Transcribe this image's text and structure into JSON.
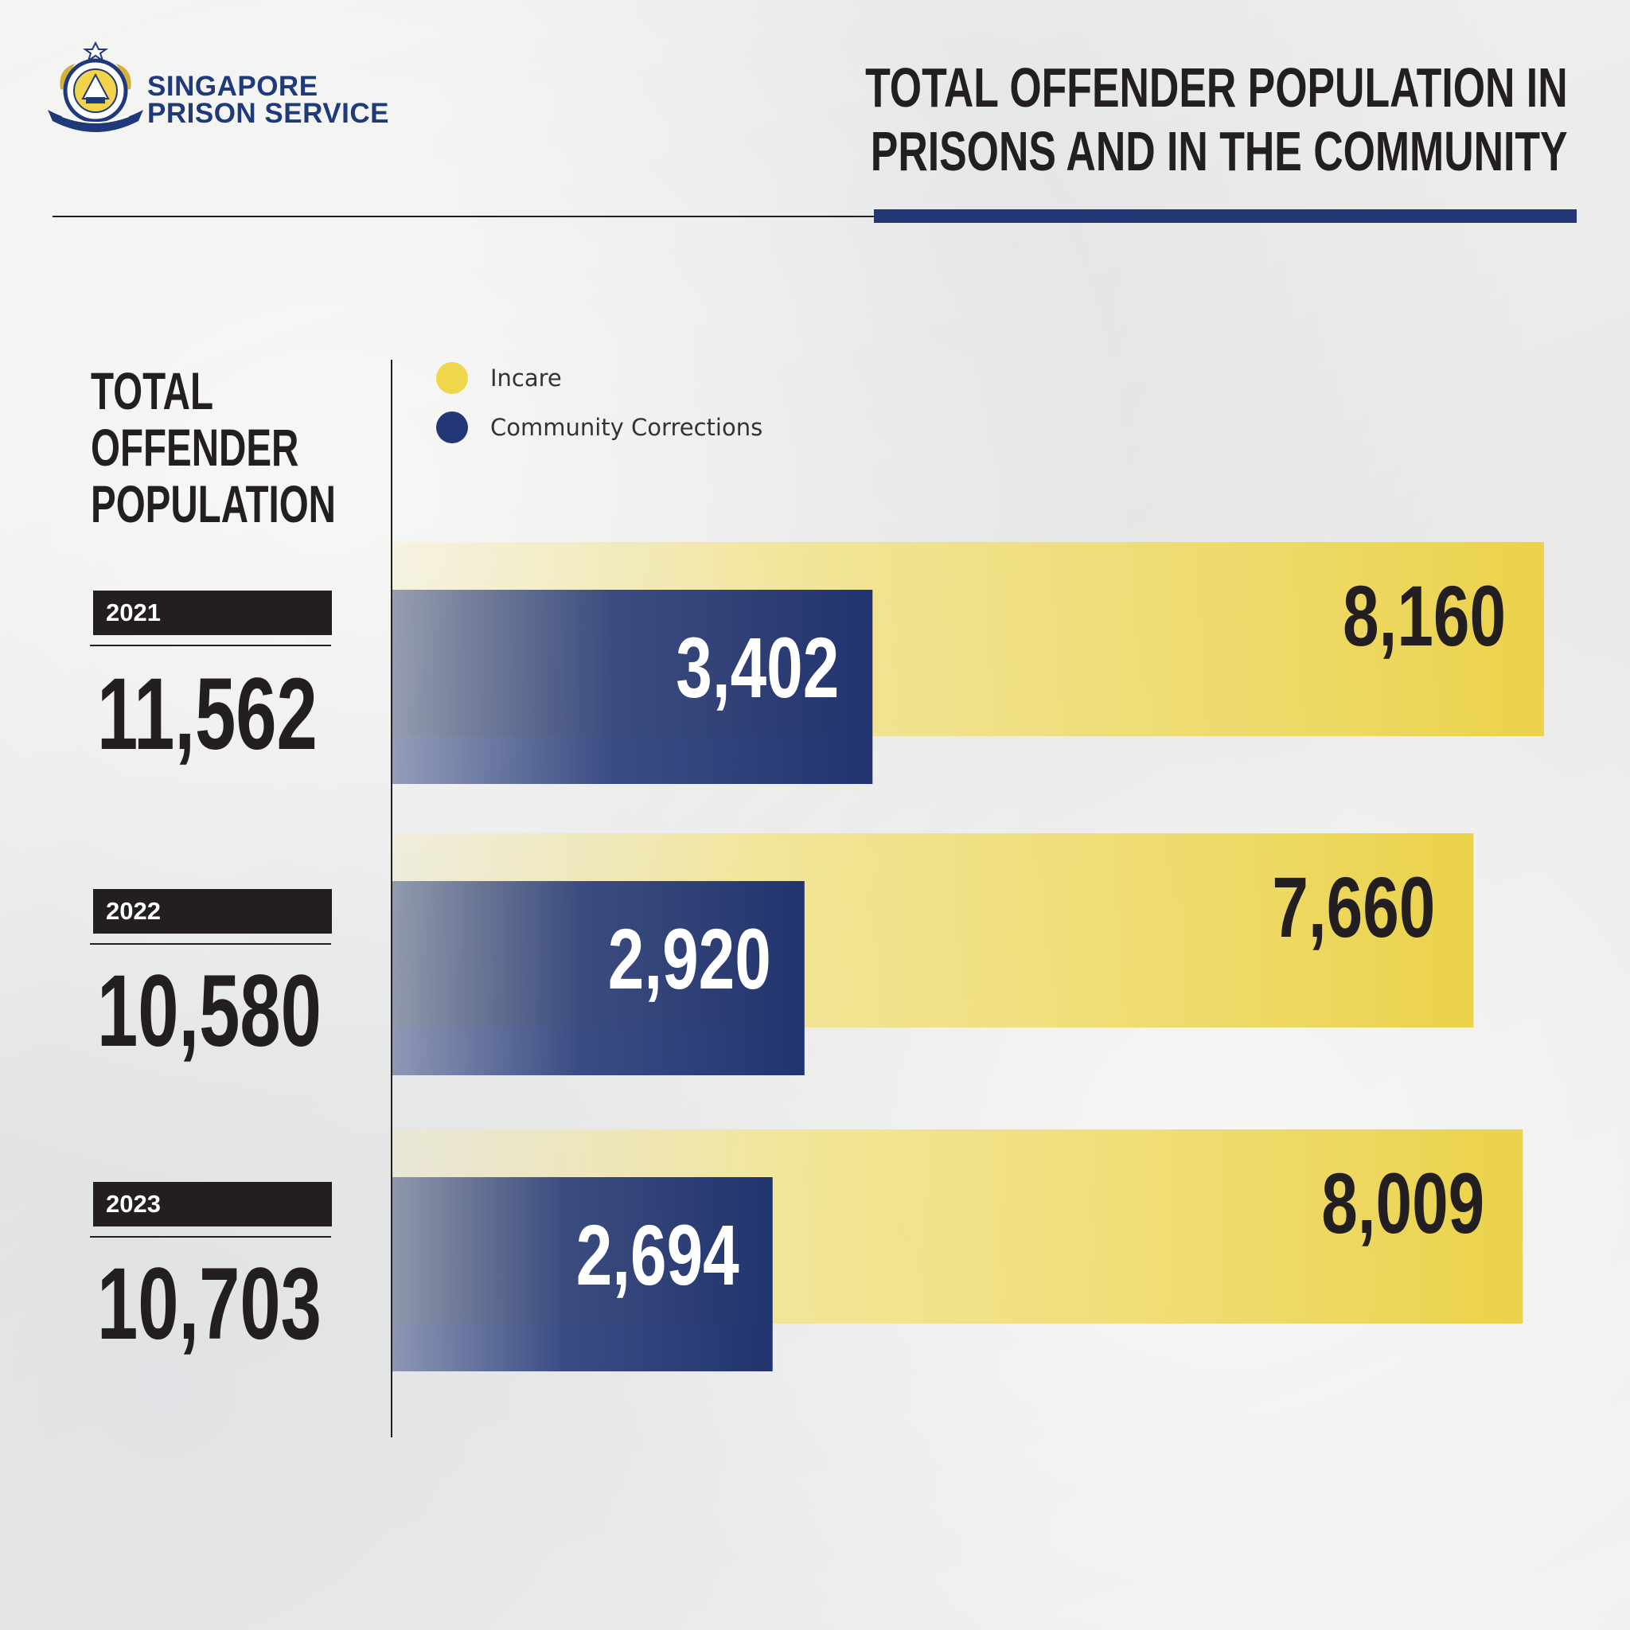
{
  "header": {
    "org_line1": "SINGAPORE",
    "org_line2": "PRISON SERVICE",
    "title_line1": "TOTAL OFFENDER POPULATION IN",
    "title_line2": "PRISONS AND IN THE COMMUNITY"
  },
  "left_panel": {
    "title_lines": [
      "TOTAL",
      "OFFENDER",
      "POPULATION"
    ],
    "years": [
      {
        "year": "2021",
        "total": "11,562"
      },
      {
        "year": "2022",
        "total": "10,580"
      },
      {
        "year": "2023",
        "total": "10,703"
      }
    ]
  },
  "colors": {
    "incare": "#f0d64b",
    "community": "#233777",
    "text_dark": "#231f20",
    "brand_blue": "#1f3a7a"
  },
  "chart_data": {
    "type": "bar",
    "orientation": "horizontal",
    "title": "TOTAL OFFENDER POPULATION IN PRISONS AND IN THE COMMUNITY",
    "categories": [
      "2021",
      "2022",
      "2023"
    ],
    "series": [
      {
        "name": "Incare",
        "values": [
          8160,
          7660,
          8009
        ],
        "labels": [
          "8,160",
          "7,660",
          "8,009"
        ]
      },
      {
        "name": "Community Corrections",
        "values": [
          3402,
          2920,
          2694
        ],
        "labels": [
          "3,402",
          "2,920",
          "2,694"
        ]
      }
    ],
    "legend": [
      "Incare",
      "Community Corrections"
    ],
    "legend_position": "top-left",
    "grid": false
  }
}
